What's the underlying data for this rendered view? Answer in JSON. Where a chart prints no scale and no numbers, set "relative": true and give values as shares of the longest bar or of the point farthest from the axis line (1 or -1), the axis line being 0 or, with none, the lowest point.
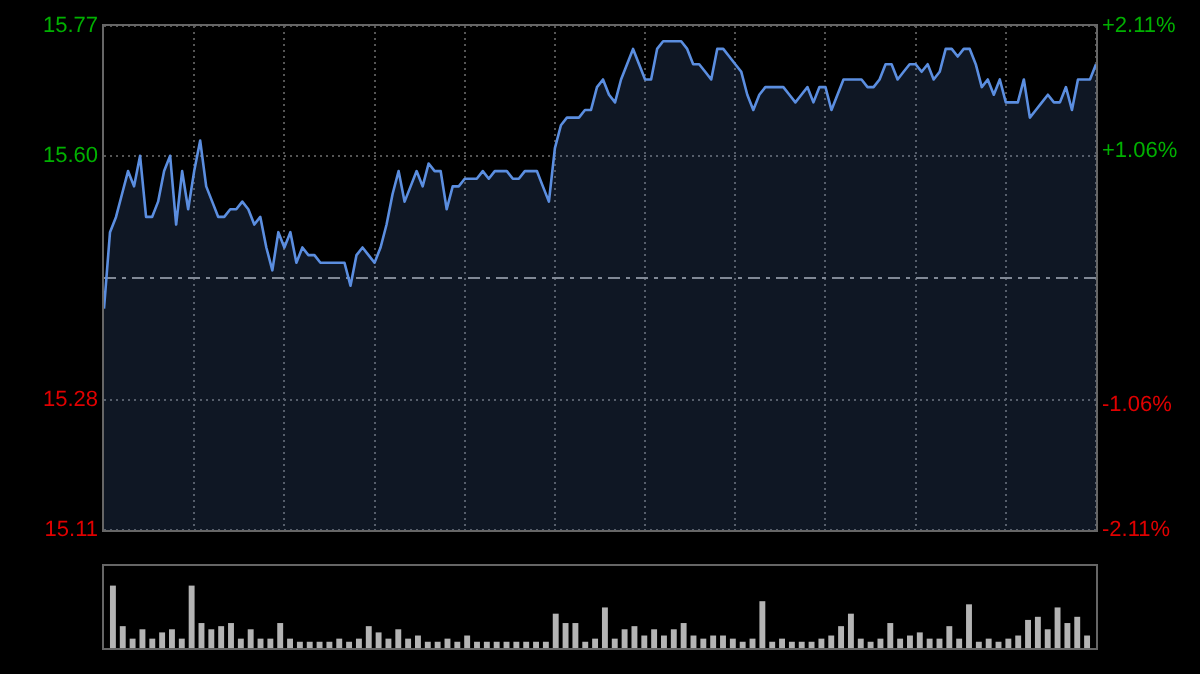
{
  "chart_data": [
    {
      "type": "area",
      "ylim": [
        15.11,
        15.77
      ],
      "yticks": [
        15.11,
        15.28,
        {
          "value": 15.6,
          "label": "15.60"
        },
        15.77
      ],
      "y2lim": [
        -2.11,
        2.11
      ],
      "y2ticks": [
        {
          "value": -2.11,
          "label": "-2.11%"
        },
        {
          "value": -1.06,
          "label": "-1.06%"
        },
        {
          "value": 1.06,
          "label": "+1.06%"
        },
        {
          "value": 2.11,
          "label": "+2.11%"
        }
      ],
      "grid": true,
      "tick_labels": "y",
      "ref_lines": [
        {
          "axis": "y",
          "value": 15.44,
          "color": "#888888",
          "line_style": "dashed"
        }
      ],
      "categories": [
        null,
        null,
        null,
        null,
        null,
        null,
        null,
        null,
        null,
        null,
        null,
        null,
        null,
        null,
        null,
        null,
        null,
        null,
        null,
        null,
        null,
        null,
        null,
        null,
        null,
        null,
        null,
        null,
        null,
        null,
        null,
        null,
        null,
        null,
        null,
        null,
        null,
        null,
        null,
        null,
        null,
        null,
        null,
        null,
        null,
        null,
        null,
        null,
        null,
        null,
        null,
        null,
        null,
        null,
        null,
        null,
        null,
        null,
        null,
        null,
        null,
        null,
        null,
        null,
        null,
        null,
        null,
        null,
        null,
        null,
        null,
        null,
        null,
        null,
        null,
        null,
        null,
        null,
        null,
        null,
        null,
        null,
        null,
        null,
        null,
        null,
        null,
        null,
        null,
        null,
        null,
        null,
        null,
        null,
        null,
        null,
        null,
        null,
        null,
        null,
        null,
        null,
        null,
        null,
        null,
        null,
        null,
        null,
        null,
        null,
        null,
        null,
        null,
        null,
        null,
        null,
        null,
        null,
        null,
        null,
        null,
        null,
        null,
        null,
        null,
        null,
        null,
        null,
        null,
        null,
        null,
        null,
        null,
        null,
        null,
        null,
        null,
        null,
        null,
        null,
        null,
        null,
        null,
        null,
        null,
        null,
        null,
        null,
        null,
        null,
        null,
        null,
        null,
        null,
        null,
        null,
        null,
        null,
        null,
        null,
        null,
        null,
        null,
        null,
        null,
        null
      ],
      "series": [
        {
          "color": "#5b8ee0",
          "values": [
            15.4,
            15.5,
            15.52,
            15.55,
            15.58,
            15.56,
            15.6,
            15.52,
            15.52,
            15.54,
            15.58,
            15.6,
            15.51,
            15.58,
            15.53,
            15.58,
            15.62,
            15.56,
            15.54,
            15.52,
            15.52,
            15.53,
            15.53,
            15.54,
            15.53,
            15.51,
            15.52,
            15.48,
            15.45,
            15.5,
            15.48,
            15.5,
            15.46,
            15.48,
            15.47,
            15.47,
            15.46,
            15.46,
            15.46,
            15.46,
            15.46,
            15.43,
            15.47,
            15.48,
            15.47,
            15.46,
            15.48,
            15.51,
            15.55,
            15.58,
            15.54,
            15.56,
            15.58,
            15.56,
            15.59,
            15.58,
            15.58,
            15.53,
            15.56,
            15.56,
            15.57,
            15.57,
            15.57,
            15.58,
            15.57,
            15.58,
            15.58,
            15.58,
            15.57,
            15.57,
            15.58,
            15.58,
            15.58,
            15.56,
            15.54,
            15.61,
            15.64,
            15.65,
            15.65,
            15.65,
            15.66,
            15.66,
            15.69,
            15.7,
            15.68,
            15.67,
            15.7,
            15.72,
            15.74,
            15.72,
            15.7,
            15.7,
            15.74,
            15.75,
            15.75,
            15.75,
            15.75,
            15.74,
            15.72,
            15.72,
            15.71,
            15.7,
            15.74,
            15.74,
            15.73,
            15.72,
            15.71,
            15.68,
            15.66,
            15.68,
            15.69,
            15.69,
            15.69,
            15.69,
            15.68,
            15.67,
            15.68,
            15.69,
            15.67,
            15.69,
            15.69,
            15.66,
            15.68,
            15.7,
            15.7,
            15.7,
            15.7,
            15.69,
            15.69,
            15.7,
            15.72,
            15.72,
            15.7,
            15.71,
            15.72,
            15.72,
            15.71,
            15.72,
            15.7,
            15.71,
            15.74,
            15.74,
            15.73,
            15.74,
            15.74,
            15.72,
            15.69,
            15.7,
            15.68,
            15.7,
            15.67,
            15.67,
            15.67,
            15.7,
            15.65,
            15.66,
            15.67,
            15.68,
            15.67,
            15.67,
            15.69,
            15.66,
            15.7,
            15.7,
            15.7,
            15.72
          ]
        }
      ]
    },
    {
      "type": "bar",
      "relative": true,
      "tick_labels": false,
      "color": "#b4b4b4",
      "categories": [
        null,
        null,
        null,
        null,
        null,
        null,
        null,
        null,
        null,
        null,
        null,
        null,
        null,
        null,
        null,
        null,
        null,
        null,
        null,
        null,
        null,
        null,
        null,
        null,
        null,
        null,
        null,
        null,
        null,
        null,
        null,
        null,
        null,
        null,
        null,
        null,
        null,
        null,
        null,
        null,
        null,
        null,
        null,
        null,
        null,
        null,
        null,
        null,
        null,
        null,
        null,
        null,
        null,
        null,
        null,
        null,
        null,
        null,
        null,
        null,
        null,
        null,
        null,
        null,
        null,
        null,
        null,
        null,
        null,
        null,
        null,
        null,
        null,
        null,
        null,
        null,
        null,
        null,
        null,
        null,
        null,
        null,
        null,
        null,
        null,
        null,
        null,
        null,
        null,
        null,
        null,
        null,
        null,
        null,
        null,
        null,
        null,
        null,
        null,
        null
      ],
      "values": [
        1.0,
        0.35,
        0.15,
        0.3,
        0.15,
        0.25,
        0.3,
        0.15,
        1.0,
        0.4,
        0.3,
        0.35,
        0.4,
        0.15,
        0.3,
        0.15,
        0.15,
        0.4,
        0.15,
        0.1,
        0.1,
        0.1,
        0.1,
        0.15,
        0.1,
        0.15,
        0.35,
        0.25,
        0.15,
        0.3,
        0.15,
        0.2,
        0.1,
        0.1,
        0.15,
        0.1,
        0.2,
        0.1,
        0.1,
        0.1,
        0.1,
        0.1,
        0.1,
        0.1,
        0.1,
        0.55,
        0.4,
        0.4,
        0.1,
        0.15,
        0.65,
        0.15,
        0.3,
        0.35,
        0.2,
        0.3,
        0.2,
        0.3,
        0.4,
        0.2,
        0.15,
        0.2,
        0.2,
        0.15,
        0.1,
        0.15,
        0.75,
        0.1,
        0.15,
        0.1,
        0.1,
        0.1,
        0.15,
        0.2,
        0.35,
        0.55,
        0.15,
        0.1,
        0.15,
        0.4,
        0.15,
        0.2,
        0.25,
        0.15,
        0.15,
        0.35,
        0.15,
        0.7,
        0.1,
        0.15,
        0.1,
        0.15,
        0.2,
        0.45,
        0.5,
        0.3,
        0.65,
        0.4,
        0.5,
        0.2
      ]
    }
  ]
}
